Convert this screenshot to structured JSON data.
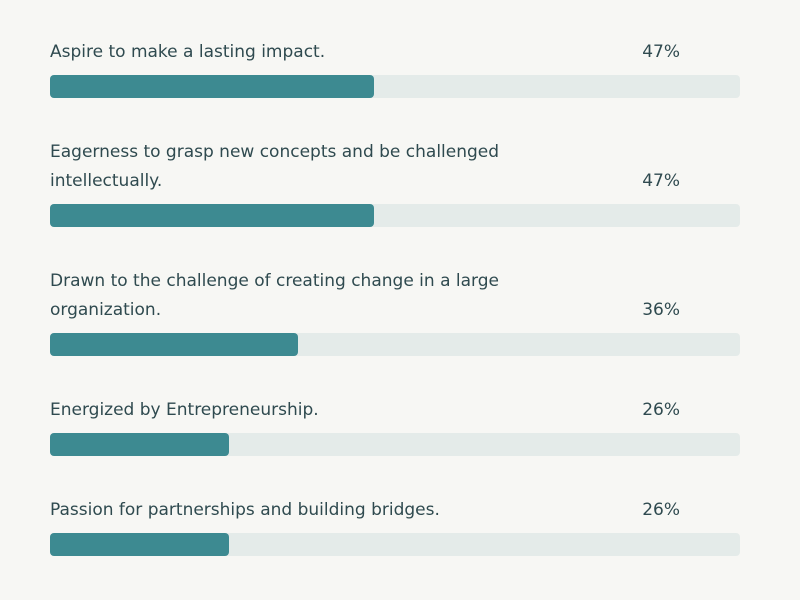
{
  "chart_data": {
    "type": "bar",
    "orientation": "horizontal",
    "categories": [
      "Aspire to make a lasting impact.",
      "Eagerness to grasp new concepts and be challenged intellectually.",
      "Drawn to the challenge of creating change in a large organization.",
      "Energized by Entrepreneurship.",
      "Passion for partnerships and building bridges."
    ],
    "values": [
      47,
      47,
      36,
      26,
      26
    ],
    "value_labels": [
      "47%",
      "47%",
      "36%",
      "26%",
      "26%"
    ],
    "color": "#3d8a91",
    "xlim": [
      0,
      100
    ]
  }
}
